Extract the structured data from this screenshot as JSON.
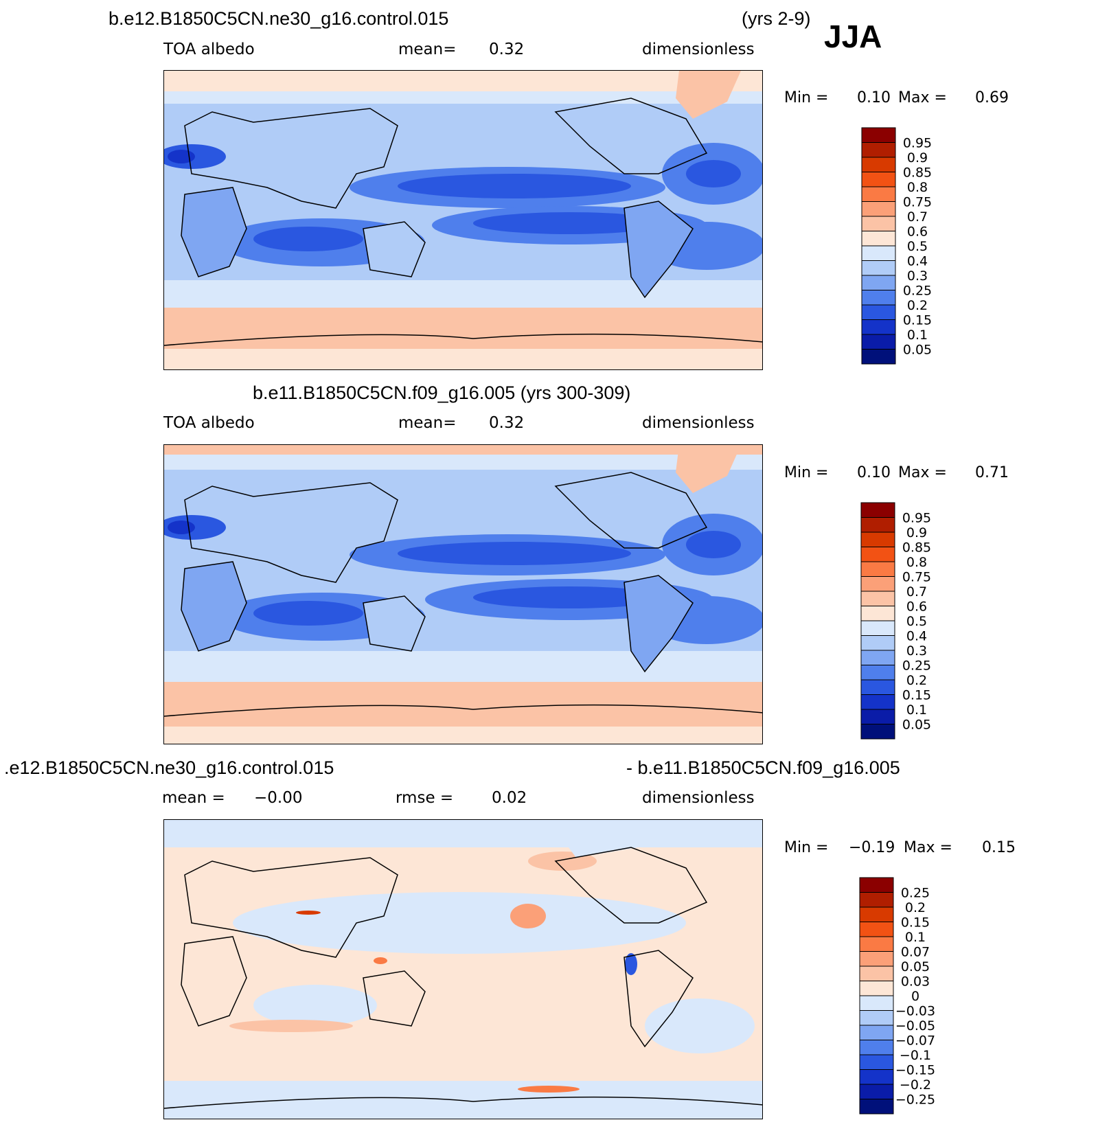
{
  "season": "JJA",
  "panels": [
    {
      "title_left": "b.e12.B1850C5CN.ne30_g16.control.015",
      "title_right": "(yrs 2-9)",
      "variable": "TOA albedo",
      "stat1_label": "mean=",
      "stat1_value": "0.32",
      "units": "dimensionless",
      "min_label": "Min =",
      "min_value": "0.10",
      "max_label": "Max =",
      "max_value": "0.69"
    },
    {
      "title_center": "b.e11.B1850C5CN.f09_g16.005 (yrs 300-309)",
      "variable": "TOA albedo",
      "stat1_label": "mean=",
      "stat1_value": "0.32",
      "units": "dimensionless",
      "min_label": "Min =",
      "min_value": "0.10",
      "max_label": "Max =",
      "max_value": "0.71"
    },
    {
      "title_left": ".e12.B1850C5CN.ne30_g16.control.015",
      "title_right": "- b.e11.B1850C5CN.f09_g16.005",
      "stat1_label": "mean =",
      "stat1_value": "−0.00",
      "stat2_label": "rmse =",
      "stat2_value": "0.02",
      "units": "dimensionless",
      "min_label": "Min =",
      "min_value": "−0.19",
      "max_label": "Max =",
      "max_value": "0.15"
    }
  ],
  "chart_data": [
    {
      "type": "heatmap",
      "colorbar_levels": [
        "0.95",
        "0.9",
        "0.85",
        "0.8",
        "0.75",
        "0.7",
        "0.6",
        "0.5",
        "0.4",
        "0.3",
        "0.25",
        "0.2",
        "0.15",
        "0.1",
        "0.05"
      ],
      "colorbar_colors": [
        "#8b0000",
        "#b01e00",
        "#d83a00",
        "#f25214",
        "#fa7a44",
        "#fba078",
        "#fbc3a6",
        "#fde6d6",
        "#d9e8fb",
        "#b0ccf7",
        "#7fa6f2",
        "#4f7fec",
        "#2a57e0",
        "#1433c9",
        "#0a1ca8",
        "#00107a"
      ]
    },
    {
      "type": "heatmap",
      "colorbar_levels": [
        "0.95",
        "0.9",
        "0.85",
        "0.8",
        "0.75",
        "0.7",
        "0.6",
        "0.5",
        "0.4",
        "0.3",
        "0.25",
        "0.2",
        "0.15",
        "0.1",
        "0.05"
      ],
      "colorbar_colors": [
        "#8b0000",
        "#b01e00",
        "#d83a00",
        "#f25214",
        "#fa7a44",
        "#fba078",
        "#fbc3a6",
        "#fde6d6",
        "#d9e8fb",
        "#b0ccf7",
        "#7fa6f2",
        "#4f7fec",
        "#2a57e0",
        "#1433c9",
        "#0a1ca8",
        "#00107a"
      ]
    },
    {
      "type": "heatmap",
      "colorbar_levels": [
        "0.25",
        "0.2",
        "0.15",
        "0.1",
        "0.07",
        "0.05",
        "0.03",
        "0",
        "−0.03",
        "−0.05",
        "−0.07",
        "−0.1",
        "−0.15",
        "−0.2",
        "−0.25"
      ],
      "colorbar_colors": [
        "#8b0000",
        "#b01e00",
        "#d83a00",
        "#f25214",
        "#fa7a44",
        "#fba078",
        "#fbc3a6",
        "#fde6d6",
        "#d9e8fb",
        "#b0ccf7",
        "#7fa6f2",
        "#4f7fec",
        "#2a57e0",
        "#1433c9",
        "#0a1ca8",
        "#00107a"
      ]
    }
  ]
}
